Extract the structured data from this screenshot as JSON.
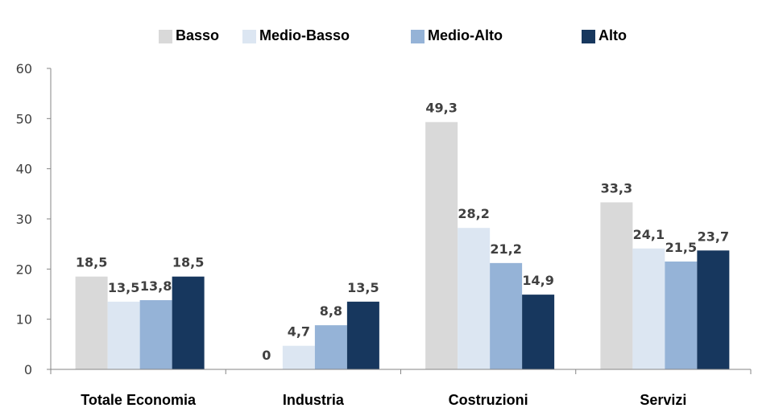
{
  "chart_data": {
    "type": "bar",
    "categories": [
      "Totale Economia",
      "Industria",
      "Costruzioni",
      "Servizi"
    ],
    "series": [
      {
        "name": "Basso",
        "color": "#d9d9d9",
        "values": [
          18.5,
          0,
          49.3,
          33.3
        ],
        "labels": [
          "18,5",
          "0",
          "49,3",
          "33,3"
        ]
      },
      {
        "name": "Medio-Basso",
        "color": "#dce6f2",
        "values": [
          13.5,
          4.7,
          28.2,
          24.1
        ],
        "labels": [
          "13,5",
          "4,7",
          "28,2",
          "24,1"
        ]
      },
      {
        "name": "Medio-Alto",
        "color": "#95b3d7",
        "values": [
          13.8,
          8.8,
          21.2,
          21.5
        ],
        "labels": [
          "13,8",
          "8,8",
          "21,2",
          "21,5"
        ]
      },
      {
        "name": "Alto",
        "color": "#17375e",
        "values": [
          18.5,
          13.5,
          14.9,
          23.7
        ],
        "labels": [
          "18,5",
          "13,5",
          "14,9",
          "23,7"
        ]
      }
    ],
    "y_ticks": [
      "0",
      "10",
      "20",
      "30",
      "40",
      "50",
      "60"
    ],
    "ylim": [
      0,
      60
    ],
    "legend_position": "top",
    "grid": false
  }
}
